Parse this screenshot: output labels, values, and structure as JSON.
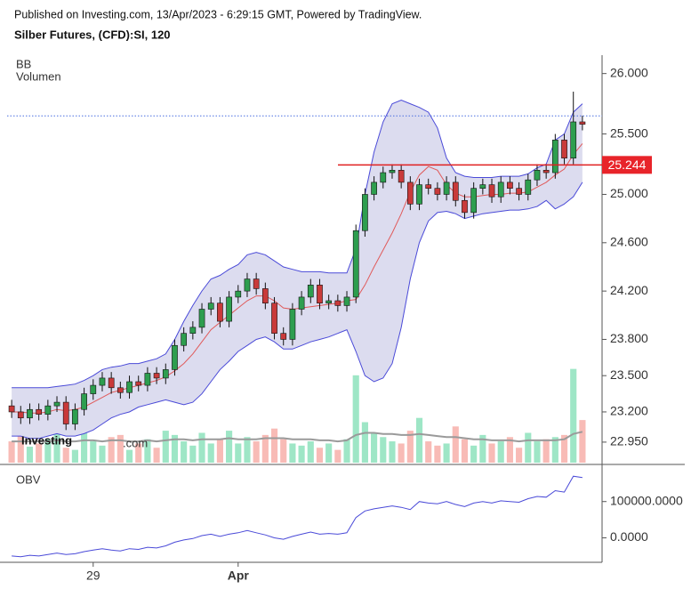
{
  "chart_data": [
    {
      "type": "candlestick",
      "header": "Published on Investing.com, 13/Apr/2023 - 6:29:15 GMT, Powered by TradingView.",
      "title": "Silber Futures, (CFD):SI, 120",
      "legend": [
        "BB",
        "Volumen"
      ],
      "logo": [
        "Investing",
        ".com"
      ],
      "xlim": [
        -0.5,
        63.5
      ],
      "xticks": [
        {
          "value": 9,
          "label": "29"
        },
        {
          "value": 25,
          "label": "Apr"
        }
      ],
      "ylim": [
        22.78,
        26.13
      ],
      "yticks": [
        {
          "value": 26,
          "label": "26.000"
        },
        {
          "value": 25.5,
          "label": "25.500"
        },
        {
          "value": 25,
          "label": "25.000"
        },
        {
          "value": 24.6,
          "label": "24.600"
        },
        {
          "value": 24.2,
          "label": "24.200"
        },
        {
          "value": 23.8,
          "label": "23.800"
        },
        {
          "value": 23.5,
          "label": "23.500"
        },
        {
          "value": 23.2,
          "label": "23.200"
        },
        {
          "value": 22.95,
          "label": "22.950"
        }
      ],
      "current_price": 25.244,
      "last_price_line": 25.65,
      "up_color": "#2e9e4f",
      "down_color": "#c93a3a",
      "open": [
        23.25,
        23.2,
        23.15,
        23.22,
        23.18,
        23.25,
        23.28,
        23.1,
        23.22,
        23.35,
        23.42,
        23.48,
        23.4,
        23.36,
        23.45,
        23.42,
        23.52,
        23.48,
        23.55,
        23.75,
        23.85,
        23.9,
        24.05,
        24.1,
        23.95,
        24.15,
        24.2,
        24.3,
        24.22,
        24.1,
        23.85,
        23.8,
        24.05,
        24.15,
        24.25,
        24.1,
        24.12,
        24.08,
        24.15,
        24.7,
        25.0,
        25.1,
        25.18,
        25.2,
        25.1,
        24.92,
        25.08,
        25.05,
        25.0,
        25.1,
        24.95,
        24.85,
        25.05,
        25.08,
        24.98,
        25.1,
        25.05,
        25.0,
        25.12,
        25.2,
        25.18,
        25.45,
        25.3,
        25.6
      ],
      "high": [
        23.3,
        23.25,
        23.27,
        23.27,
        23.3,
        23.33,
        23.33,
        23.27,
        23.4,
        23.47,
        23.53,
        23.53,
        23.45,
        23.5,
        23.5,
        23.57,
        23.57,
        23.6,
        23.8,
        23.9,
        23.95,
        24.1,
        24.15,
        24.15,
        24.2,
        24.25,
        24.35,
        24.35,
        24.27,
        24.15,
        23.9,
        24.1,
        24.2,
        24.3,
        24.3,
        24.17,
        24.17,
        24.2,
        24.75,
        25.05,
        25.15,
        25.23,
        25.25,
        25.25,
        25.15,
        25.13,
        25.13,
        25.1,
        25.15,
        25.15,
        25.0,
        25.1,
        25.13,
        25.13,
        25.15,
        25.15,
        25.1,
        25.17,
        25.25,
        25.25,
        25.5,
        25.5,
        25.85,
        25.65
      ],
      "low": [
        23.15,
        23.1,
        23.1,
        23.13,
        23.13,
        23.2,
        23.05,
        23.05,
        23.17,
        23.3,
        23.37,
        23.35,
        23.31,
        23.31,
        23.37,
        23.37,
        23.43,
        23.43,
        23.5,
        23.7,
        23.8,
        23.85,
        24.0,
        23.9,
        23.9,
        24.1,
        24.15,
        24.17,
        24.05,
        23.8,
        23.75,
        23.75,
        24.0,
        24.1,
        24.05,
        24.05,
        24.03,
        24.03,
        24.1,
        24.65,
        24.95,
        25.05,
        25.13,
        25.05,
        24.87,
        24.87,
        25.0,
        24.95,
        24.95,
        24.9,
        24.8,
        24.8,
        25.0,
        24.93,
        24.93,
        25.0,
        24.95,
        24.95,
        25.07,
        25.13,
        25.13,
        25.25,
        25.25,
        25.53
      ],
      "close": [
        23.2,
        23.15,
        23.22,
        23.18,
        23.25,
        23.28,
        23.1,
        23.22,
        23.35,
        23.42,
        23.48,
        23.4,
        23.36,
        23.45,
        23.42,
        23.52,
        23.48,
        23.55,
        23.75,
        23.85,
        23.9,
        24.05,
        24.1,
        23.95,
        24.15,
        24.2,
        24.3,
        24.22,
        24.1,
        23.85,
        23.8,
        24.05,
        24.15,
        24.25,
        24.1,
        24.12,
        24.08,
        24.15,
        24.7,
        25.0,
        25.1,
        25.18,
        25.2,
        25.1,
        24.92,
        25.08,
        25.05,
        25.0,
        25.1,
        24.95,
        24.85,
        25.05,
        25.08,
        24.98,
        25.1,
        25.05,
        25.0,
        25.12,
        25.2,
        25.18,
        25.45,
        25.3,
        25.6,
        25.58
      ],
      "bb_upper": [
        23.4,
        23.4,
        23.4,
        23.4,
        23.4,
        23.41,
        23.42,
        23.43,
        23.46,
        23.5,
        23.55,
        23.57,
        23.58,
        23.6,
        23.6,
        23.62,
        23.64,
        23.68,
        23.8,
        23.95,
        24.08,
        24.2,
        24.3,
        24.33,
        24.38,
        24.42,
        24.5,
        24.52,
        24.5,
        24.45,
        24.4,
        24.38,
        24.36,
        24.36,
        24.36,
        24.35,
        24.35,
        24.35,
        24.55,
        25.0,
        25.35,
        25.6,
        25.75,
        25.78,
        25.75,
        25.72,
        25.68,
        25.55,
        25.3,
        25.18,
        25.15,
        25.14,
        25.14,
        25.14,
        25.15,
        25.15,
        25.15,
        25.17,
        25.22,
        25.25,
        25.45,
        25.5,
        25.68,
        25.75
      ],
      "bb_middle": [
        23.2,
        23.2,
        23.19,
        23.19,
        23.2,
        23.22,
        23.21,
        23.22,
        23.24,
        23.28,
        23.32,
        23.36,
        23.38,
        23.4,
        23.42,
        23.44,
        23.46,
        23.49,
        23.54,
        23.6,
        23.68,
        23.78,
        23.88,
        23.94,
        24.0,
        24.06,
        24.12,
        24.16,
        24.16,
        24.12,
        24.06,
        24.05,
        24.06,
        24.07,
        24.08,
        24.09,
        24.1,
        24.12,
        24.13,
        24.25,
        24.4,
        24.54,
        24.68,
        24.84,
        25.02,
        25.16,
        25.23,
        25.2,
        25.08,
        25.01,
        24.98,
        24.98,
        24.99,
        25.0,
        25.0,
        25.01,
        25.01,
        25.02,
        25.06,
        25.1,
        25.16,
        25.21,
        25.33,
        25.42
      ],
      "bb_lower": [
        23.0,
        23.0,
        22.98,
        22.98,
        23.0,
        23.02,
        23.0,
        23.0,
        23.02,
        23.05,
        23.1,
        23.15,
        23.18,
        23.2,
        23.24,
        23.26,
        23.28,
        23.3,
        23.28,
        23.26,
        23.28,
        23.35,
        23.45,
        23.55,
        23.62,
        23.7,
        23.75,
        23.8,
        23.82,
        23.78,
        23.72,
        23.72,
        23.75,
        23.78,
        23.8,
        23.82,
        23.85,
        23.88,
        23.7,
        23.5,
        23.45,
        23.48,
        23.6,
        23.9,
        24.3,
        24.6,
        24.78,
        24.85,
        24.86,
        24.84,
        24.8,
        24.82,
        24.84,
        24.85,
        24.86,
        24.87,
        24.87,
        24.88,
        24.9,
        24.95,
        24.88,
        24.92,
        24.98,
        25.1
      ],
      "volume_lim": [
        0,
        380
      ],
      "volume": [
        20,
        25,
        15,
        18,
        22,
        30,
        14,
        12,
        28,
        20,
        16,
        24,
        26,
        12,
        18,
        22,
        14,
        30,
        26,
        20,
        16,
        28,
        18,
        22,
        30,
        18,
        24,
        20,
        26,
        32,
        22,
        18,
        16,
        20,
        14,
        18,
        12,
        22,
        82,
        38,
        28,
        24,
        20,
        18,
        30,
        42,
        20,
        16,
        18,
        34,
        22,
        16,
        26,
        18,
        20,
        24,
        14,
        28,
        20,
        22,
        24,
        26,
        88,
        40
      ],
      "volume_ma": [
        20,
        20,
        20,
        20,
        20,
        21,
        20,
        20,
        21,
        21,
        20,
        21,
        21,
        20,
        20,
        21,
        20,
        21,
        22,
        22,
        21,
        22,
        22,
        22,
        23,
        22,
        22,
        22,
        23,
        23,
        23,
        22,
        22,
        22,
        21,
        21,
        20,
        21,
        26,
        28,
        28,
        27,
        27,
        26,
        26,
        27,
        26,
        25,
        24,
        24,
        23,
        22,
        22,
        21,
        21,
        21,
        20,
        21,
        21,
        21,
        21,
        22,
        27,
        29
      ],
      "up_volume_color": "#9ee6c6",
      "down_volume_color": "#f8bbb6",
      "volume_ma_color": "#9a9a9a",
      "bb_line_color": "#4a4ad8",
      "bb_fill": "#dcdcef",
      "bb_middle_color": "#e05a5a"
    },
    {
      "type": "line",
      "title": "OBV",
      "ylim": [
        -67500,
        195000
      ],
      "yticks": [
        {
          "value": 100000,
          "label": "100000.0000"
        },
        {
          "value": 0,
          "label": "0.0000"
        }
      ],
      "color": "#4a4ad8",
      "values": [
        -50000,
        -52000,
        -48000,
        -50000,
        -46000,
        -42000,
        -46000,
        -44000,
        -38000,
        -34000,
        -30000,
        -34000,
        -36000,
        -30000,
        -32000,
        -26000,
        -28000,
        -22000,
        -12000,
        -6000,
        -2000,
        6000,
        10000,
        4000,
        10000,
        14000,
        20000,
        14000,
        8000,
        0,
        -4000,
        4000,
        10000,
        16000,
        10000,
        12000,
        10000,
        14000,
        56000,
        74000,
        80000,
        84000,
        88000,
        84000,
        78000,
        100000,
        96000,
        94000,
        100000,
        92000,
        86000,
        96000,
        100000,
        96000,
        102000,
        100000,
        98000,
        108000,
        114000,
        112000,
        130000,
        126000,
        170000,
        166000
      ]
    }
  ]
}
